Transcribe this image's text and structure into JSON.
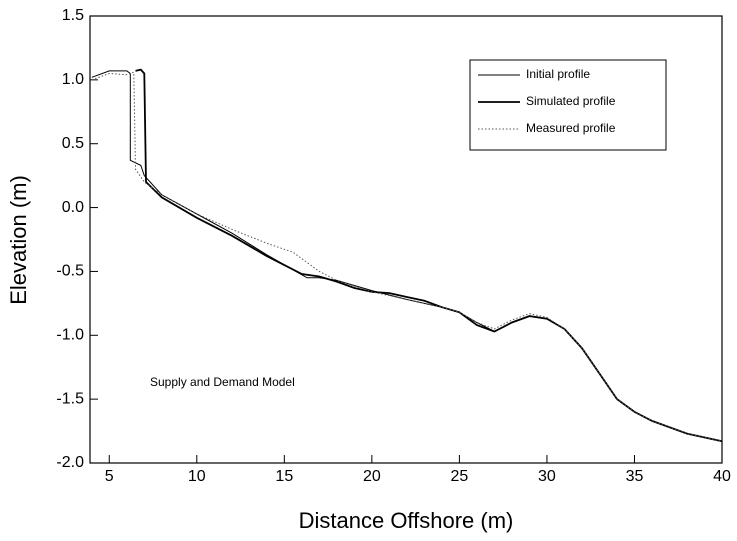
{
  "chart_data": {
    "type": "line",
    "xlabel": "Distance Offshore (m)",
    "ylabel": "Elevation (m)",
    "annotation": "Supply and Demand Model",
    "xlim": [
      3.9,
      40
    ],
    "ylim": [
      -2,
      1.5
    ],
    "xticks": [
      5,
      10,
      15,
      20,
      25,
      30,
      35,
      40
    ],
    "yticks": [
      {
        "value": -2,
        "label": "-2.0"
      },
      -1.5,
      {
        "value": -1,
        "label": "-1.0"
      },
      -0.5,
      {
        "value": 0,
        "label": "0.0"
      },
      0.5,
      {
        "value": 1,
        "label": "1.0"
      },
      1.5
    ],
    "legend": "upper right",
    "series": [
      {
        "name": "Initial profile",
        "color": "#000000",
        "style": "solid",
        "x": [
          4,
          5,
          6,
          6.2,
          6.2,
          6.8,
          7,
          8,
          10,
          12,
          14,
          16.3,
          17,
          18,
          20,
          22,
          24,
          25,
          26,
          27,
          28,
          29,
          30,
          31,
          32,
          33,
          34,
          35,
          36,
          38,
          40
        ],
        "values": [
          1.02,
          1.07,
          1.07,
          1.05,
          0.37,
          0.33,
          0.25,
          0.1,
          -0.05,
          -0.2,
          -0.37,
          -0.55,
          -0.55,
          -0.57,
          -0.65,
          -0.72,
          -0.78,
          -0.82,
          -0.9,
          -0.97,
          -0.9,
          -0.85,
          -0.87,
          -0.95,
          -1.1,
          -1.3,
          -1.5,
          -1.6,
          -1.67,
          -1.77,
          -1.83
        ]
      },
      {
        "name": "Simulated profile",
        "color": "#000000",
        "style": "bold",
        "x": [
          6.5,
          6.8,
          7,
          7.1,
          8,
          10,
          12,
          14,
          16,
          17,
          18,
          19,
          20,
          21,
          22,
          23,
          24,
          25,
          26,
          27,
          28,
          29,
          30,
          31,
          32,
          33,
          34,
          35,
          36,
          38,
          40
        ],
        "values": [
          1.07,
          1.08,
          1.05,
          0.2,
          0.08,
          -0.08,
          -0.22,
          -0.38,
          -0.52,
          -0.54,
          -0.58,
          -0.63,
          -0.66,
          -0.67,
          -0.7,
          -0.73,
          -0.78,
          -0.82,
          -0.92,
          -0.97,
          -0.9,
          -0.85,
          -0.87,
          -0.95,
          -1.1,
          -1.3,
          -1.5,
          -1.6,
          -1.67,
          -1.77,
          -1.83
        ]
      },
      {
        "name": "Measured profile",
        "color": "#555555",
        "style": "dotted",
        "x": [
          4,
          5,
          6,
          6.4,
          6.5,
          7,
          8,
          10,
          12,
          14,
          15.5,
          17,
          18,
          20,
          22,
          24,
          25,
          26,
          27,
          28,
          29,
          30,
          31,
          32,
          33,
          34,
          35,
          36,
          38,
          40
        ],
        "values": [
          1.0,
          1.05,
          1.04,
          1.06,
          0.3,
          0.2,
          0.1,
          -0.05,
          -0.17,
          -0.28,
          -0.35,
          -0.5,
          -0.57,
          -0.66,
          -0.72,
          -0.78,
          -0.82,
          -0.9,
          -0.95,
          -0.88,
          -0.83,
          -0.86,
          -0.95,
          -1.1,
          -1.3,
          -1.5,
          -1.6,
          -1.67,
          -1.77,
          -1.83
        ]
      }
    ]
  }
}
